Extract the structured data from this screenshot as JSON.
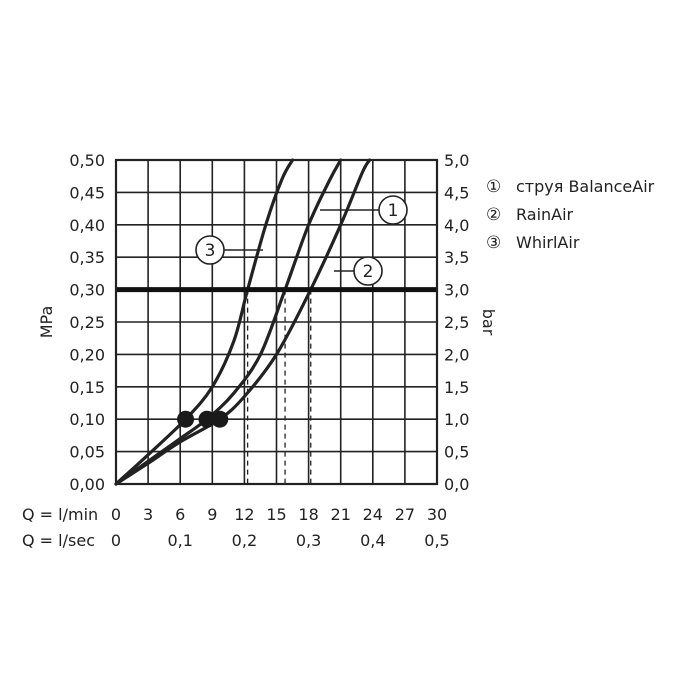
{
  "chart_data": {
    "type": "line",
    "left_axis": {
      "label": "MPa",
      "ticks": [
        "0,00",
        "0,05",
        "0,10",
        "0,15",
        "0,20",
        "0,25",
        "0,30",
        "0,35",
        "0,40",
        "0,45",
        "0,50"
      ],
      "range": [
        0,
        0.5
      ]
    },
    "right_axis": {
      "label": "bar",
      "ticks": [
        "0,0",
        "0,5",
        "1,0",
        "1,5",
        "2,0",
        "2,5",
        "3,0",
        "3,5",
        "4,0",
        "4,5",
        "5,0"
      ],
      "range": [
        0,
        5
      ]
    },
    "x_axis_lmin": {
      "label": "Q = l/min",
      "ticks": [
        "0",
        "3",
        "6",
        "9",
        "12",
        "15",
        "18",
        "21",
        "24",
        "27",
        "30"
      ],
      "range": [
        0,
        30
      ]
    },
    "x_axis_lsec": {
      "label": "Q = l/sec",
      "ticks": [
        "0",
        "0,1",
        "0,2",
        "0,3",
        "0,4",
        "0,5"
      ],
      "range": [
        0,
        0.5
      ]
    },
    "reference_line_mpa": 0.3,
    "grid": true,
    "series": [
      {
        "name": "струя BalanceAir",
        "marker": "①",
        "callout": "1",
        "x": [
          0,
          3,
          6,
          8.5,
          11,
          13.5,
          15.8,
          18,
          20,
          21
        ],
        "y": [
          0,
          0.035,
          0.07,
          0.1,
          0.14,
          0.2,
          0.3,
          0.4,
          0.47,
          0.5
        ]
      },
      {
        "name": "RainAir",
        "marker": "②",
        "callout": "2",
        "x": [
          0,
          3,
          6,
          9.7,
          12,
          15,
          18.2,
          21,
          23,
          23.7
        ],
        "y": [
          0,
          0.032,
          0.065,
          0.1,
          0.135,
          0.2,
          0.3,
          0.4,
          0.48,
          0.5
        ]
      },
      {
        "name": "WhirlAir",
        "marker": "③",
        "callout": "3",
        "x": [
          0,
          3,
          6.5,
          9,
          11,
          12.3,
          14,
          15.5,
          16.5
        ],
        "y": [
          0,
          0.045,
          0.1,
          0.15,
          0.22,
          0.3,
          0.4,
          0.47,
          0.5
        ]
      }
    ],
    "points": [
      {
        "x": 6.5,
        "y": 0.1
      },
      {
        "x": 8.5,
        "y": 0.1
      },
      {
        "x": 9.7,
        "y": 0.1
      }
    ],
    "drop_lines_x": [
      12.3,
      15.8,
      18.2
    ],
    "legend_position": "right"
  }
}
